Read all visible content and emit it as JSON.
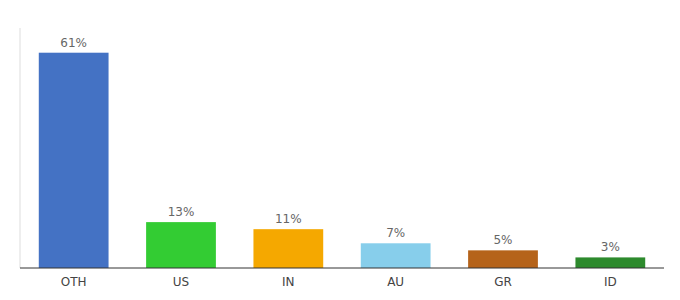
{
  "chart_data": {
    "type": "bar",
    "categories": [
      "OTH",
      "US",
      "IN",
      "AU",
      "GR",
      "ID"
    ],
    "values": [
      61,
      13,
      11,
      7,
      5,
      3
    ],
    "value_labels": [
      "61%",
      "13%",
      "11%",
      "7%",
      "5%",
      "3%"
    ],
    "colors": [
      "#4472c4",
      "#33cc33",
      "#f5a800",
      "#87ceeb",
      "#b5631a",
      "#2d8a2d"
    ],
    "ylim": [
      0,
      68
    ],
    "data_labels": true,
    "tick_labels": "x",
    "grid": false
  }
}
